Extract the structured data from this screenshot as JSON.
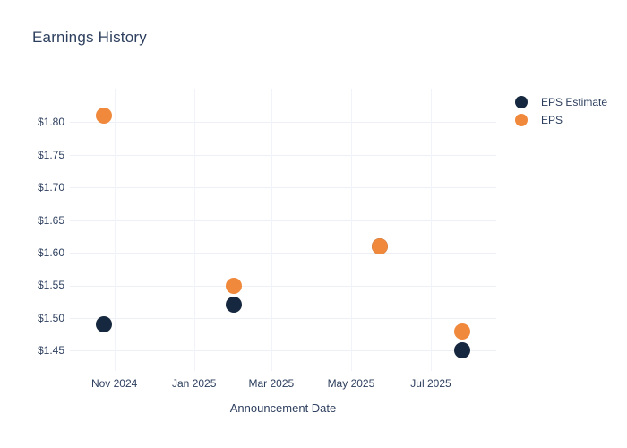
{
  "title": "Earnings History",
  "x_axis": {
    "label": "Announcement Date",
    "domain": [
      "2024-09-28",
      "2025-08-20"
    ],
    "ticks": [
      {
        "label": "Nov 2024",
        "date": "2024-11-01"
      },
      {
        "label": "Jan 2025",
        "date": "2025-01-01"
      },
      {
        "label": "Mar 2025",
        "date": "2025-03-01"
      },
      {
        "label": "May 2025",
        "date": "2025-05-01"
      },
      {
        "label": "Jul 2025",
        "date": "2025-07-01"
      }
    ]
  },
  "y_axis": {
    "domain": [
      1.419,
      1.851
    ],
    "ticks": [
      {
        "label": "$1.45",
        "value": 1.45
      },
      {
        "label": "$1.50",
        "value": 1.5
      },
      {
        "label": "$1.55",
        "value": 1.55
      },
      {
        "label": "$1.60",
        "value": 1.6
      },
      {
        "label": "$1.65",
        "value": 1.65
      },
      {
        "label": "$1.70",
        "value": 1.7
      },
      {
        "label": "$1.75",
        "value": 1.75
      },
      {
        "label": "$1.80",
        "value": 1.8
      }
    ]
  },
  "legend": {
    "items": [
      {
        "label": "EPS Estimate",
        "color": "#16283F"
      },
      {
        "label": "EPS",
        "color": "#F0893C"
      }
    ]
  },
  "colors": {
    "eps_estimate": "#16283F",
    "eps": "#F0893C",
    "text": "#2D3F5E",
    "gridline": "#EDF0F7",
    "background": "#FFFFFF"
  },
  "chart_data": {
    "type": "scatter",
    "title": "Earnings History",
    "xlabel": "Announcement Date",
    "ylabel": "",
    "x": [
      "2024-10-24",
      "2025-01-31",
      "2025-05-23",
      "2025-07-25"
    ],
    "series": [
      {
        "name": "EPS Estimate",
        "color": "#16283F",
        "values": [
          1.49,
          1.52,
          1.61,
          1.45
        ]
      },
      {
        "name": "EPS",
        "color": "#F0893C",
        "values": [
          1.81,
          1.55,
          1.61,
          1.48
        ]
      }
    ],
    "xlim": [
      "2024-09-28",
      "2025-08-20"
    ],
    "ylim": [
      1.419,
      1.851
    ],
    "x_tick_labels": [
      "Nov 2024",
      "Jan 2025",
      "Mar 2025",
      "May 2025",
      "Jul 2025"
    ],
    "y_tick_labels": [
      "$1.45",
      "$1.50",
      "$1.55",
      "$1.60",
      "$1.65",
      "$1.70",
      "$1.75",
      "$1.80"
    ],
    "grid": true,
    "legend_position": "right",
    "marker_size_px": 18
  }
}
